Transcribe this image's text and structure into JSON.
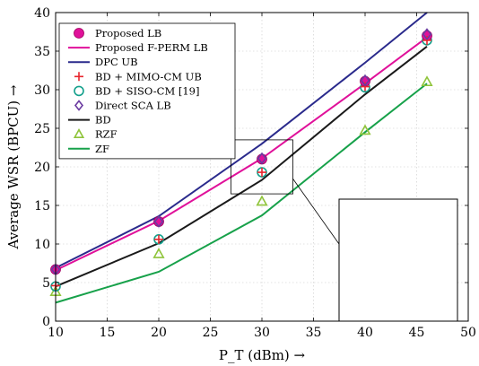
{
  "chart_data": {
    "type": "line",
    "xlabel": "P_T (dBm) →",
    "ylabel": "Average WSR (BPCU) →",
    "xlim": [
      10,
      50
    ],
    "ylim": [
      0,
      40
    ],
    "xticks": [
      10,
      15,
      20,
      25,
      30,
      35,
      40,
      45,
      50
    ],
    "yticks": [
      0,
      5,
      10,
      15,
      20,
      25,
      30,
      35,
      40
    ],
    "grid": true,
    "legend_position": "top-left",
    "x": [
      10,
      20,
      30,
      40,
      46
    ],
    "series": [
      {
        "name": "Proposed LB",
        "style": "markers",
        "marker": "circle-filled",
        "color": "#e0119a",
        "values": [
          6.7,
          12.9,
          21.0,
          31.1,
          37.0
        ]
      },
      {
        "name": "Proposed F-PERM LB",
        "style": "line",
        "color": "#e0119a",
        "values": [
          6.6,
          13.0,
          21.1,
          30.8,
          36.8
        ]
      },
      {
        "name": "DPC UB",
        "style": "line",
        "color": "#2a2a8c",
        "values": [
          6.9,
          13.6,
          23.0,
          33.5,
          40.0
        ]
      },
      {
        "name": "BD + MIMO-CM UB",
        "style": "markers",
        "marker": "plus",
        "color": "#e8262e",
        "values": [
          4.6,
          10.6,
          19.3,
          30.4,
          36.4
        ]
      },
      {
        "name": "BD + SISO-CM [19]",
        "style": "markers",
        "marker": "circle-open",
        "color": "#14a08c",
        "values": [
          4.5,
          10.6,
          19.3,
          30.3,
          36.4
        ]
      },
      {
        "name": "Direct SCA LB",
        "style": "markers",
        "marker": "diamond-open",
        "color": "#6a3aa0",
        "values": [
          6.7,
          12.9,
          21.1,
          31.2,
          37.2
        ]
      },
      {
        "name": "BD",
        "style": "line",
        "color": "#1a1a1a",
        "values": [
          4.5,
          10.1,
          18.3,
          29.4,
          35.6
        ]
      },
      {
        "name": "RZF",
        "style": "markers",
        "marker": "triangle-open",
        "color": "#8fc43a",
        "values": [
          3.8,
          8.7,
          15.5,
          24.7,
          31.0
        ]
      },
      {
        "name": "ZF",
        "style": "line",
        "color": "#17a14a",
        "values": [
          2.4,
          6.4,
          13.7,
          24.5,
          30.8
        ]
      }
    ],
    "zoom_box": {
      "xlim": [
        27,
        33
      ],
      "ylim": [
        16.5,
        23.5
      ]
    },
    "inset": {
      "xlim": [
        42.2,
        43.8
      ],
      "ylim": [
        6.5,
        7.7
      ]
    }
  }
}
